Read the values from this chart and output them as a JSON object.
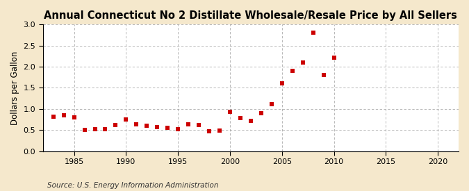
{
  "title": "Annual Connecticut No 2 Distillate Wholesale/Resale Price by All Sellers",
  "ylabel": "Dollars per Gallon",
  "source": "Source: U.S. Energy Information Administration",
  "years": [
    1983,
    1984,
    1985,
    1986,
    1987,
    1988,
    1989,
    1990,
    1991,
    1992,
    1993,
    1994,
    1995,
    1996,
    1997,
    1998,
    1999,
    2000,
    2001,
    2002,
    2003,
    2004,
    2005,
    2006,
    2007,
    2008,
    2009,
    2010
  ],
  "values": [
    0.82,
    0.85,
    0.8,
    0.51,
    0.52,
    0.52,
    0.62,
    0.75,
    0.63,
    0.6,
    0.57,
    0.55,
    0.52,
    0.63,
    0.62,
    0.47,
    0.48,
    0.93,
    0.78,
    0.72,
    0.9,
    1.12,
    1.6,
    1.9,
    2.1,
    2.8,
    1.8,
    2.22
  ],
  "marker_color": "#cc0000",
  "marker_size": 18,
  "xlim": [
    1982,
    2022
  ],
  "ylim": [
    0.0,
    3.0
  ],
  "xticks": [
    1985,
    1990,
    1995,
    2000,
    2005,
    2010,
    2015,
    2020
  ],
  "yticks": [
    0.0,
    0.5,
    1.0,
    1.5,
    2.0,
    2.5,
    3.0
  ],
  "fig_background_color": "#f5e8cc",
  "plot_bg_color": "#ffffff",
  "grid_color": "#999999",
  "title_fontsize": 10.5,
  "label_fontsize": 8.5,
  "tick_fontsize": 8,
  "source_fontsize": 7.5
}
